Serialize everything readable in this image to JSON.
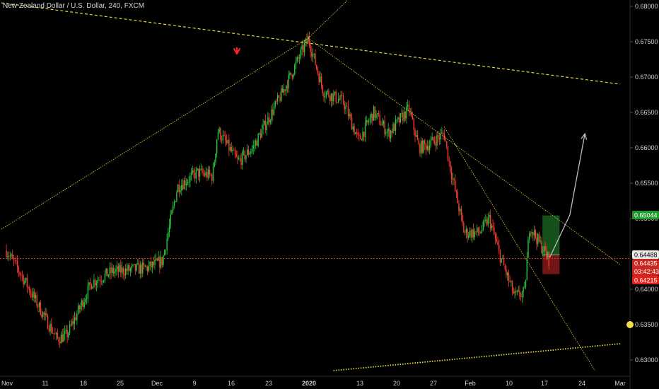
{
  "header": {
    "title": "New Zealand Dollar / U.S. Dollar, 240, FXCM"
  },
  "price_axis": {
    "ticks": [
      "0.68000",
      "0.67500",
      "0.67000",
      "0.66500",
      "0.66000",
      "0.65500",
      "0.65000",
      "0.64500",
      "0.64000",
      "0.63500",
      "0.63000"
    ]
  },
  "time_axis": {
    "labels": [
      {
        "text": "Nov",
        "bold": false
      },
      {
        "text": "11",
        "bold": false
      },
      {
        "text": "18",
        "bold": false
      },
      {
        "text": "25",
        "bold": false
      },
      {
        "text": "Dec",
        "bold": false
      },
      {
        "text": "9",
        "bold": false
      },
      {
        "text": "16",
        "bold": false
      },
      {
        "text": "23",
        "bold": false
      },
      {
        "text": "2020",
        "bold": true
      },
      {
        "text": "13",
        "bold": false
      },
      {
        "text": "20",
        "bold": false
      },
      {
        "text": "27",
        "bold": false
      },
      {
        "text": "Feb",
        "bold": false
      },
      {
        "text": "10",
        "bold": false
      },
      {
        "text": "17",
        "bold": false
      },
      {
        "text": "24",
        "bold": false
      },
      {
        "text": "Mar",
        "bold": false
      }
    ]
  },
  "badges": {
    "target": "0.65044",
    "high": "0.64488",
    "last": "0.64435",
    "countdown": "03:42:43",
    "stop": "0.64215"
  },
  "colors": {
    "up": "#27c93f",
    "down": "#ff3b30",
    "trendline": "#e6d53a",
    "last_price_line": "#e0302a",
    "projection_arrow": "#b8bcc4",
    "profit_zone": "#1e6b24",
    "loss_zone": "#8c1b1b"
  },
  "icons": {
    "marker": "red-down-arrow-icon",
    "alert": "yellow-alert-dot-icon"
  },
  "chart_data": {
    "type": "candlestick",
    "title": "New Zealand Dollar / U.S. Dollar, 240, FXCM",
    "ylim": [
      0.6285,
      0.681
    ],
    "y_scale": "linear",
    "grid": false,
    "key_points": [
      {
        "date": "2019-11-01",
        "price": 0.6455
      },
      {
        "date": "2019-11-04",
        "price": 0.642
      },
      {
        "date": "2019-11-11",
        "price": 0.633
      },
      {
        "date": "2019-11-13",
        "price": 0.6335
      },
      {
        "date": "2019-11-18",
        "price": 0.641
      },
      {
        "date": "2019-11-22",
        "price": 0.6425
      },
      {
        "date": "2019-11-29",
        "price": 0.643
      },
      {
        "date": "2019-12-02",
        "price": 0.644
      },
      {
        "date": "2019-12-05",
        "price": 0.6545
      },
      {
        "date": "2019-12-09",
        "price": 0.6565
      },
      {
        "date": "2019-12-12",
        "price": 0.656
      },
      {
        "date": "2019-12-13",
        "price": 0.6625
      },
      {
        "date": "2019-12-17",
        "price": 0.658
      },
      {
        "date": "2019-12-20",
        "price": 0.66
      },
      {
        "date": "2019-12-26",
        "price": 0.668
      },
      {
        "date": "2019-12-31",
        "price": 0.6755
      },
      {
        "date": "2020-01-03",
        "price": 0.668
      },
      {
        "date": "2020-01-07",
        "price": 0.6665
      },
      {
        "date": "2020-01-10",
        "price": 0.661
      },
      {
        "date": "2020-01-13",
        "price": 0.665
      },
      {
        "date": "2020-01-16",
        "price": 0.662
      },
      {
        "date": "2020-01-20",
        "price": 0.6655
      },
      {
        "date": "2020-01-22",
        "price": 0.66
      },
      {
        "date": "2020-01-24",
        "price": 0.6605
      },
      {
        "date": "2020-01-27",
        "price": 0.662
      },
      {
        "date": "2020-01-28",
        "price": 0.658
      },
      {
        "date": "2020-01-31",
        "price": 0.648
      },
      {
        "date": "2020-02-03",
        "price": 0.648
      },
      {
        "date": "2020-02-05",
        "price": 0.65
      },
      {
        "date": "2020-02-07",
        "price": 0.645
      },
      {
        "date": "2020-02-10",
        "price": 0.639
      },
      {
        "date": "2020-02-12",
        "price": 0.6395
      },
      {
        "date": "2020-02-13",
        "price": 0.649
      },
      {
        "date": "2020-02-15",
        "price": 0.6465
      },
      {
        "date": "2020-02-17",
        "price": 0.644
      }
    ],
    "last_price": 0.64435,
    "long_position": {
      "entry": 0.64488,
      "target": 0.65044,
      "stop": 0.64215
    },
    "projection": [
      {
        "date": "2020-02-17",
        "price": 0.6445
      },
      {
        "date": "2020-02-18",
        "price": 0.646
      },
      {
        "date": "2020-02-21",
        "price": 0.6505
      },
      {
        "date": "2020-02-24",
        "price": 0.662
      }
    ],
    "trendlines": [
      {
        "from": {
          "date": "2019-10-31",
          "price": 0.6485
        },
        "to": {
          "date": "2019-12-31",
          "price": 0.6755
        }
      },
      {
        "from": {
          "date": "2019-12-31",
          "price": 0.6755
        },
        "to": {
          "date": "2020-01-08",
          "price": 0.681
        }
      },
      {
        "from": {
          "date": "2019-10-31",
          "price": 0.6805
        },
        "to": {
          "date": "2020-03-02",
          "price": 0.669
        }
      },
      {
        "from": {
          "date": "2019-12-31",
          "price": 0.6755
        },
        "to": {
          "date": "2020-03-02",
          "price": 0.6435
        }
      },
      {
        "from": {
          "date": "2020-01-27",
          "price": 0.663
        },
        "to": {
          "date": "2020-02-26",
          "price": 0.6285
        }
      },
      {
        "from": {
          "date": "2020-01-05",
          "price": 0.6285
        },
        "to": {
          "date": "2020-03-02",
          "price": 0.6323
        }
      }
    ]
  }
}
